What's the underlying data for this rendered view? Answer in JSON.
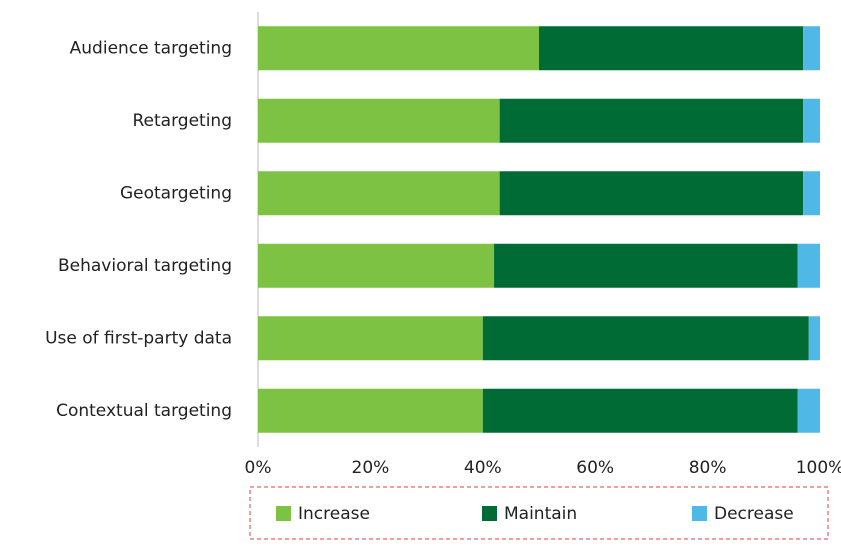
{
  "chart_data": {
    "type": "stacked_bar_horizontal",
    "categories": [
      "Audience targeting",
      "Retargeting",
      "Geotargeting",
      "Behavioral targeting",
      "Use of first-party data",
      "Contextual targeting"
    ],
    "series": [
      {
        "name": "Increase",
        "color": "#7dc243",
        "values": [
          50,
          43,
          43,
          42,
          40,
          40
        ]
      },
      {
        "name": "Maintain",
        "color": "#006b35",
        "values": [
          47,
          54,
          54,
          54,
          58,
          56
        ]
      },
      {
        "name": "Decrease",
        "color": "#4fb8e6",
        "values": [
          3,
          3,
          3,
          4,
          2,
          4
        ]
      }
    ],
    "xlim": [
      0,
      100
    ],
    "xticks": [
      {
        "value": 0,
        "label": "0%"
      },
      {
        "value": 20,
        "label": "20%"
      },
      {
        "value": 40,
        "label": "40%"
      },
      {
        "value": 60,
        "label": "60%"
      },
      {
        "value": 80,
        "label": "80%"
      },
      {
        "value": 100,
        "label": "100%"
      }
    ],
    "legend": "bottom"
  }
}
